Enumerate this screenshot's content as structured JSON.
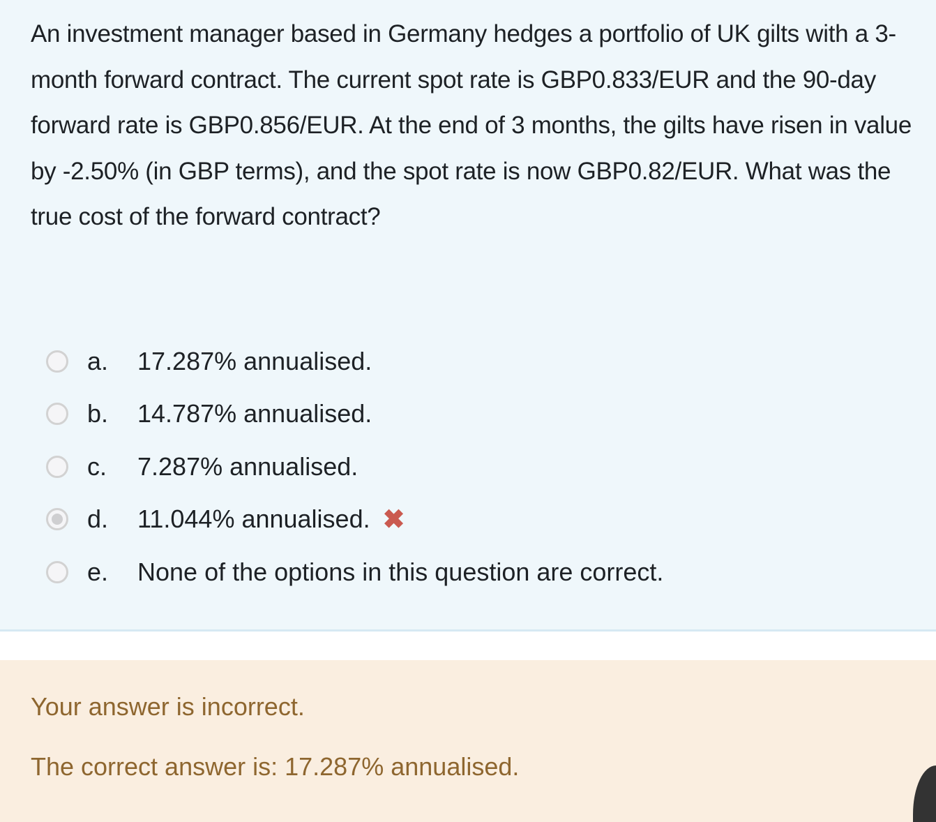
{
  "question": {
    "text": "An investment manager based in Germany hedges a portfolio of UK gilts with a 3-month forward contract. The current spot rate is GBP0.833/EUR and the 90-day forward rate is GBP0.856/EUR. At the end of 3 months, the gilts have risen in value by -2.50% (in GBP terms), and the spot rate is now GBP0.82/EUR. What was the true cost of the forward contract?",
    "options": [
      {
        "letter": "a.",
        "text": "17.287% annualised.",
        "selected": false
      },
      {
        "letter": "b.",
        "text": "14.787% annualised.",
        "selected": false
      },
      {
        "letter": "c.",
        "text": "7.287% annualised.",
        "selected": false
      },
      {
        "letter": "d.",
        "text": "11.044% annualised.",
        "selected": true,
        "mark": "incorrect-x-icon"
      },
      {
        "letter": "e.",
        "text": "None of the options in this question are correct.",
        "selected": false
      }
    ]
  },
  "feedback": {
    "status": "Your answer is incorrect.",
    "correct_answer": "The correct answer is: 17.287% annualised."
  },
  "colors": {
    "incorrect": "#ca5a50",
    "feedback_text": "#8e662f",
    "feedback_bg": "#faeee0",
    "question_bg": "#eff7fb"
  }
}
